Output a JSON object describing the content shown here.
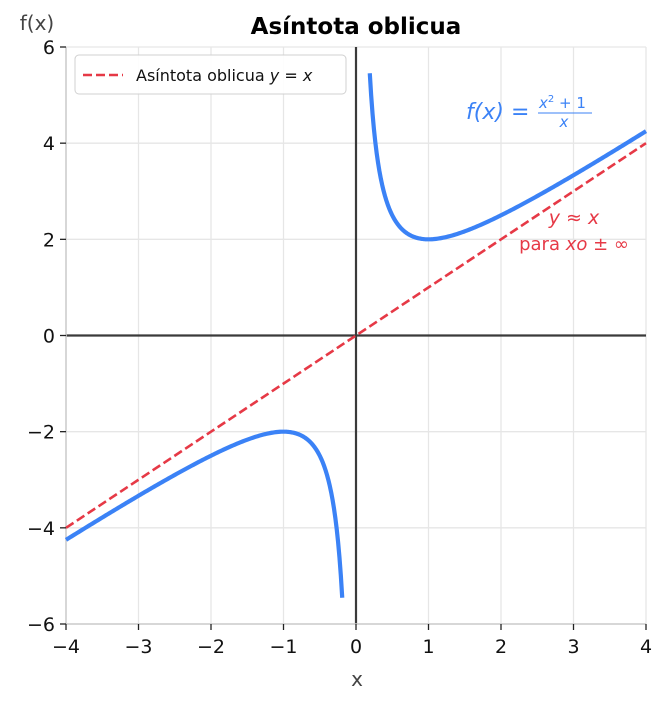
{
  "chart_data": {
    "type": "line",
    "title": "Asíntota oblicua",
    "xlabel": "x",
    "ylabel": "f(x)",
    "xlim": [
      -4,
      4
    ],
    "ylim": [
      -6,
      6
    ],
    "x_ticks": [
      -4,
      -3,
      -2,
      -1,
      0,
      1,
      2,
      3,
      4
    ],
    "y_ticks": [
      -6,
      -4,
      -2,
      0,
      2,
      4,
      6
    ],
    "x_tick_labels": [
      "−4",
      "−3",
      "−2",
      "−1",
      "0",
      "1",
      "2",
      "3",
      "4"
    ],
    "y_tick_labels": [
      "−6",
      "−4",
      "−2",
      "0",
      "2",
      "4",
      "6"
    ],
    "grid": true,
    "legend_position": "upper left",
    "series": [
      {
        "name": "f(x) = (x²+1)/x",
        "style": "solid",
        "color": "#3b82f6",
        "domain_segments": [
          [
            -4,
            -0.19
          ],
          [
            0.19,
            4
          ]
        ],
        "x": [
          -4,
          -3,
          -2,
          -1,
          -0.5,
          -0.3,
          -0.2,
          0.2,
          0.3,
          0.5,
          1,
          2,
          3,
          4
        ],
        "values": [
          -4.25,
          -3.33,
          -2.5,
          -2.0,
          -2.5,
          -3.63,
          -5.2,
          5.2,
          3.63,
          2.5,
          2.0,
          2.5,
          3.33,
          4.25
        ]
      },
      {
        "name": "Asíntota oblicua y = x",
        "style": "dashed",
        "color": "#e63946",
        "x": [
          -4,
          4
        ],
        "values": [
          -4,
          4
        ]
      }
    ],
    "annotations": [
      {
        "text": "f(x) = (x²+1)/x",
        "x": 1.5,
        "y": 4.6,
        "color": "#3b82f6"
      },
      {
        "text": "y ≈ x",
        "x": 2.65,
        "y": 2.4,
        "color": "#e63946"
      },
      {
        "text": "para xo ± ∞",
        "x": 2.2,
        "y": 1.85,
        "color": "#e63946"
      }
    ]
  },
  "labels": {
    "title": "Asíntota oblicua",
    "xlabel": "x",
    "ylabel": "f(x)",
    "legend_text": "Asíntota oblicua",
    "legend_math": "y = x",
    "func_f": "f",
    "func_x": "(x)",
    "func_eq": "=",
    "func_num": "x",
    "func_num_exp": "2",
    "func_num_rest": " + 1",
    "func_den": "x",
    "ann_line1": "y ≈ x",
    "ann_line2_prefix": "para ",
    "ann_line2_math": "xo ± ∞"
  }
}
